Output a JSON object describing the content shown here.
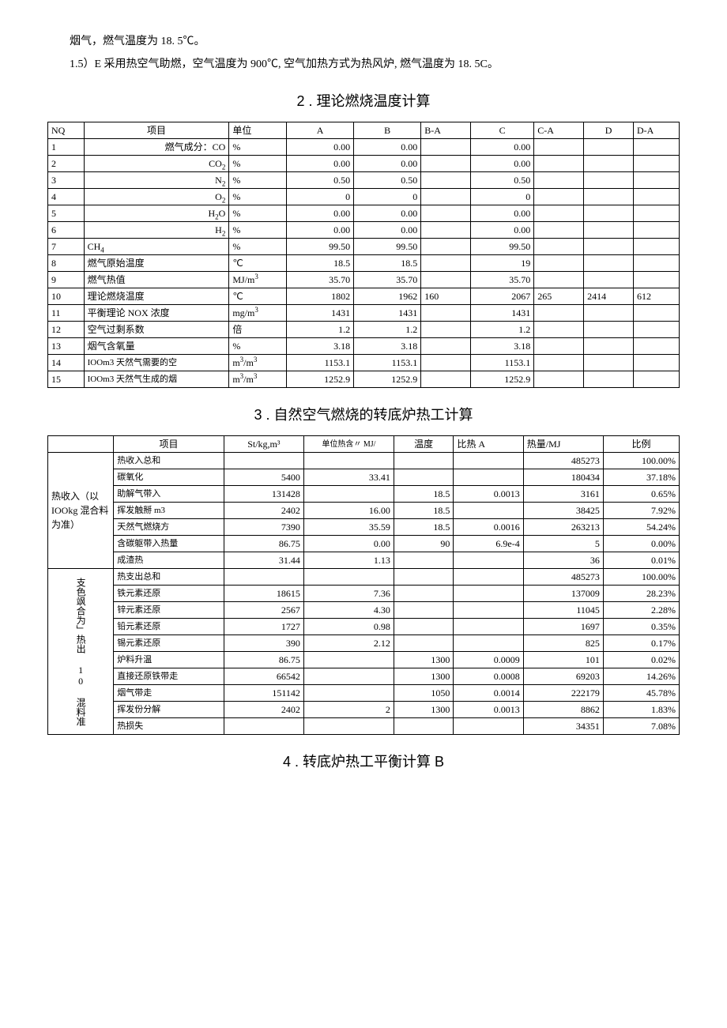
{
  "intro": {
    "p1": "烟气，燃气温度为 18. 5℃。",
    "p2": "1.5）E 采用热空气助燃，空气温度为 900℃, 空气加热方式为热风炉, 燃气温度为 18. 5C。"
  },
  "sec2": {
    "title": "2 . 理论燃烧温度计算",
    "cols": [
      "NQ",
      "项目",
      "单位",
      "A",
      "B",
      "B-A",
      "C",
      "C-A",
      "D",
      "D-A"
    ],
    "rows": [
      [
        "1",
        "燃气成分：CO",
        "%",
        "0.00",
        "0.00",
        "",
        "0.00",
        "",
        "",
        ""
      ],
      [
        "2",
        "CO₂",
        "%",
        "0.00",
        "0.00",
        "",
        "0.00",
        "",
        "",
        ""
      ],
      [
        "3",
        "N₂",
        "%",
        "0.50",
        "0.50",
        "",
        "0.50",
        "",
        "",
        ""
      ],
      [
        "4",
        "O₂",
        "%",
        "0",
        "0",
        "",
        "0",
        "",
        "",
        ""
      ],
      [
        "5",
        "H₂O",
        "%",
        "0.00",
        "0.00",
        "",
        "0.00",
        "",
        "",
        ""
      ],
      [
        "6",
        "H₂",
        "%",
        "0.00",
        "0.00",
        "",
        "0.00",
        "",
        "",
        ""
      ],
      [
        "7",
        "CH₄",
        "%",
        "99.50",
        "99.50",
        "",
        "99.50",
        "",
        "",
        ""
      ],
      [
        "8",
        "燃气原始温度",
        "℃",
        "18.5",
        "18.5",
        "",
        "19",
        "",
        "",
        ""
      ],
      [
        "9",
        "燃气热值",
        "MJ/m³",
        "35.70",
        "35.70",
        "",
        "35.70",
        "",
        "",
        ""
      ],
      [
        "10",
        "理论燃烧温度",
        "℃",
        "1802",
        "1962",
        "160",
        "2067",
        "265",
        "2414",
        "612"
      ],
      [
        "11",
        "平衡理论 NOX 浓度",
        "mg/m³",
        "1431",
        "1431",
        "",
        "1431",
        "",
        "",
        ""
      ],
      [
        "12",
        "空气过剩系数",
        "倍",
        "1.2",
        "1.2",
        "",
        "1.2",
        "",
        "",
        ""
      ],
      [
        "13",
        "烟气含氧量",
        "%",
        "3.18",
        "3.18",
        "",
        "3.18",
        "",
        "",
        ""
      ],
      [
        "14",
        "IOOm3 天然气需要的空",
        "m³/m³",
        "1153.1",
        "1153.1",
        "",
        "1153.1",
        "",
        "",
        ""
      ],
      [
        "15",
        "IOOm3 天然气生成的烟",
        "m³/m³",
        "1252.9",
        "1252.9",
        "",
        "1252.9",
        "",
        "",
        ""
      ]
    ]
  },
  "sec3": {
    "title": "3 . 自然空气燃烧的转底炉热工计算",
    "cols": [
      "",
      "项目",
      "St/kg,m³",
      "单位热含〃 MJ/",
      "温度",
      "比热 A",
      "热量/MJ",
      "比例"
    ],
    "group_in": "热收入（以IOOkg 混合料为准）",
    "group_out": "支色飒合为」热出 10 混料准",
    "rows_in": [
      [
        "热收入总和",
        "",
        "",
        "",
        "",
        "485273",
        "100.00%"
      ],
      [
        "碳氧化",
        "5400",
        "33.41",
        "",
        "",
        "180434",
        "37.18%"
      ],
      [
        "助解气带入",
        "131428",
        "",
        "18.5",
        "0.0013",
        "3161",
        "0.65%"
      ],
      [
        "挥发触掰 m3",
        "2402",
        "16.00",
        "18.5",
        "",
        "38425",
        "7.92%"
      ],
      [
        "天然气燃烧方",
        "7390",
        "35.59",
        "18.5",
        "0.0016",
        "263213",
        "54.24%"
      ],
      [
        "含碳躯带入热量",
        "86.75",
        "0.00",
        "90",
        "6.9e-4",
        "5",
        "0.00%"
      ],
      [
        "成渣热",
        "31.44",
        "1.13",
        "",
        "",
        "36",
        "0.01%"
      ]
    ],
    "rows_out": [
      [
        "热支出总和",
        "",
        "",
        "",
        "",
        "485273",
        "100.00%"
      ],
      [
        "铁元素还原",
        "18615",
        "7.36",
        "",
        "",
        "137009",
        "28.23%"
      ],
      [
        "锌元素还原",
        "2567",
        "4.30",
        "",
        "",
        "11045",
        "2.28%"
      ],
      [
        "铅元素还原",
        "1727",
        "0.98",
        "",
        "",
        "1697",
        "0.35%"
      ],
      [
        "锡元素还原",
        "390",
        "2.12",
        "",
        "",
        "825",
        "0.17%"
      ],
      [
        "炉料升温",
        "86.75",
        "",
        "1300",
        "0.0009",
        "101",
        "0.02%"
      ],
      [
        "直接还原铁带走",
        "66542",
        "",
        "1300",
        "0.0008",
        "69203",
        "14.26%"
      ],
      [
        "烟气带走",
        "151142",
        "",
        "1050",
        "0.0014",
        "222179",
        "45.78%"
      ],
      [
        "挥发份分解",
        "2402",
        "2",
        "1300",
        "0.0013",
        "8862",
        "1.83%"
      ],
      [
        "热损失",
        "",
        "",
        "",
        "",
        "34351",
        "7.08%"
      ]
    ]
  },
  "sec4": {
    "title": "4 . 转底炉热工平衡计算 B"
  }
}
